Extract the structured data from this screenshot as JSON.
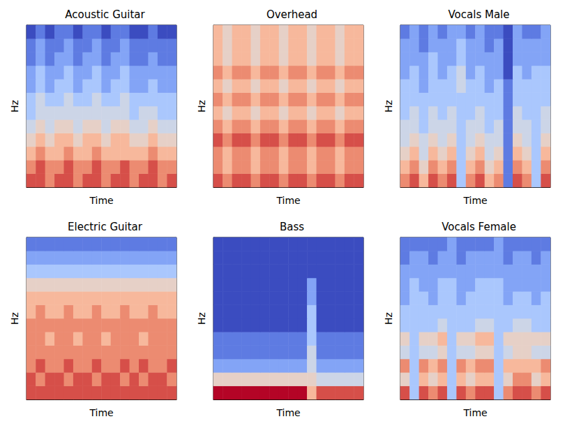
{
  "chart_data": [
    {
      "type": "heatmap",
      "title": "Acoustic Guitar",
      "x_label": "Time",
      "y_label": "Hz",
      "tick_labels": false,
      "zlim": [
        0,
        9
      ],
      "cells": [
        [
          8,
          8,
          7,
          8,
          8,
          7,
          8,
          8,
          7,
          8,
          8,
          7,
          8,
          8,
          7,
          8
        ],
        [
          7,
          8,
          7,
          7,
          8,
          7,
          7,
          8,
          7,
          7,
          8,
          7,
          7,
          8,
          7,
          7
        ],
        [
          6,
          7,
          6,
          6,
          7,
          6,
          6,
          7,
          6,
          6,
          6,
          6,
          6,
          7,
          6,
          6
        ],
        [
          5,
          6,
          5,
          6,
          6,
          5,
          6,
          6,
          5,
          6,
          6,
          5,
          5,
          6,
          5,
          5
        ],
        [
          4,
          5,
          4,
          5,
          5,
          4,
          5,
          5,
          4,
          5,
          5,
          4,
          4,
          5,
          4,
          4
        ],
        [
          3,
          4,
          4,
          4,
          4,
          4,
          4,
          4,
          4,
          4,
          4,
          3,
          4,
          4,
          3,
          3
        ],
        [
          3,
          4,
          3,
          3,
          4,
          3,
          3,
          4,
          3,
          3,
          4,
          3,
          3,
          3,
          3,
          3
        ],
        [
          2,
          3,
          2,
          3,
          3,
          2,
          3,
          3,
          2,
          3,
          3,
          2,
          2,
          3,
          2,
          2
        ],
        [
          2,
          3,
          2,
          2,
          3,
          2,
          2,
          3,
          2,
          2,
          3,
          2,
          2,
          2,
          2,
          2
        ],
        [
          1,
          2,
          1,
          2,
          2,
          1,
          2,
          2,
          1,
          2,
          2,
          1,
          1,
          2,
          1,
          1
        ],
        [
          1,
          2,
          1,
          1,
          2,
          1,
          1,
          2,
          1,
          1,
          2,
          1,
          1,
          1,
          1,
          1
        ],
        [
          0,
          1,
          0,
          1,
          1,
          0,
          1,
          1,
          0,
          1,
          1,
          0,
          0,
          1,
          0,
          0
        ]
      ]
    },
    {
      "type": "heatmap",
      "title": "Overhead",
      "x_label": "Time",
      "y_label": "Hz",
      "tick_labels": false,
      "zlim": [
        0,
        9
      ],
      "cells": [
        [
          8,
          7,
          8,
          8,
          7,
          8,
          8,
          7,
          8,
          8,
          7,
          8,
          8,
          7,
          8,
          8
        ],
        [
          7,
          6,
          7,
          7,
          6,
          7,
          7,
          6,
          7,
          7,
          6,
          7,
          7,
          6,
          7,
          7
        ],
        [
          7,
          6,
          7,
          7,
          6,
          7,
          7,
          6,
          7,
          7,
          6,
          7,
          7,
          6,
          7,
          7
        ],
        [
          8,
          7,
          8,
          8,
          7,
          8,
          8,
          7,
          8,
          8,
          7,
          8,
          8,
          7,
          8,
          8
        ],
        [
          7,
          6,
          7,
          7,
          6,
          7,
          7,
          6,
          7,
          7,
          6,
          7,
          7,
          6,
          7,
          7
        ],
        [
          6,
          5,
          6,
          6,
          5,
          6,
          6,
          5,
          6,
          6,
          5,
          6,
          6,
          5,
          6,
          6
        ],
        [
          7,
          6,
          7,
          7,
          6,
          7,
          7,
          6,
          7,
          7,
          6,
          7,
          7,
          6,
          7,
          7
        ],
        [
          6,
          5,
          6,
          6,
          5,
          6,
          6,
          5,
          6,
          6,
          5,
          6,
          6,
          5,
          6,
          6
        ],
        [
          7,
          6,
          7,
          7,
          6,
          7,
          7,
          6,
          7,
          7,
          6,
          7,
          7,
          6,
          7,
          7
        ],
        [
          6,
          5,
          6,
          6,
          5,
          6,
          6,
          5,
          6,
          6,
          5,
          6,
          6,
          5,
          6,
          6
        ],
        [
          6,
          5,
          6,
          6,
          5,
          6,
          6,
          5,
          6,
          6,
          5,
          6,
          6,
          5,
          6,
          6
        ],
        [
          6,
          5,
          6,
          6,
          5,
          6,
          6,
          5,
          6,
          6,
          5,
          6,
          6,
          5,
          6,
          6
        ]
      ]
    },
    {
      "type": "heatmap",
      "title": "Vocals Male",
      "x_label": "Time",
      "y_label": "Hz",
      "tick_labels": false,
      "zlim": [
        0,
        9
      ],
      "cells": [
        [
          7,
          8,
          6,
          8,
          7,
          8,
          3,
          7,
          8,
          6,
          7,
          1,
          8,
          7,
          3,
          8
        ],
        [
          6,
          7,
          5,
          7,
          6,
          7,
          3,
          6,
          7,
          5,
          6,
          1,
          7,
          6,
          3,
          7
        ],
        [
          5,
          6,
          4,
          6,
          5,
          6,
          3,
          5,
          6,
          4,
          5,
          1,
          6,
          5,
          3,
          6
        ],
        [
          4,
          5,
          4,
          5,
          4,
          5,
          3,
          4,
          5,
          4,
          4,
          1,
          5,
          4,
          3,
          5
        ],
        [
          4,
          4,
          3,
          4,
          4,
          4,
          3,
          4,
          4,
          3,
          4,
          1,
          4,
          4,
          3,
          4
        ],
        [
          3,
          4,
          3,
          4,
          3,
          4,
          3,
          3,
          4,
          3,
          3,
          1,
          4,
          3,
          3,
          4
        ],
        [
          3,
          3,
          3,
          3,
          3,
          3,
          3,
          3,
          3,
          3,
          3,
          1,
          3,
          3,
          3,
          3
        ],
        [
          3,
          3,
          2,
          3,
          3,
          3,
          4,
          3,
          3,
          2,
          3,
          1,
          3,
          3,
          3,
          3
        ],
        [
          2,
          3,
          2,
          3,
          2,
          3,
          4,
          2,
          3,
          2,
          2,
          0,
          3,
          2,
          3,
          3
        ],
        [
          2,
          2,
          2,
          3,
          2,
          2,
          3,
          2,
          2,
          2,
          2,
          0,
          2,
          2,
          2,
          2
        ],
        [
          2,
          2,
          1,
          2,
          2,
          2,
          3,
          2,
          2,
          1,
          2,
          0,
          2,
          2,
          2,
          2
        ],
        [
          1,
          2,
          1,
          2,
          1,
          2,
          2,
          1,
          2,
          1,
          1,
          0,
          2,
          1,
          1,
          2
        ]
      ]
    },
    {
      "type": "heatmap",
      "title": "Electric Guitar",
      "x_label": "Time",
      "y_label": "Hz",
      "tick_labels": false,
      "zlim": [
        0,
        9
      ],
      "cells": [
        [
          8,
          8,
          8,
          8,
          8,
          8,
          8,
          8,
          8,
          8,
          8,
          8,
          8,
          8,
          8,
          8
        ],
        [
          8,
          7,
          8,
          8,
          7,
          8,
          8,
          7,
          8,
          8,
          7,
          8,
          7,
          8,
          8,
          7
        ],
        [
          7,
          8,
          7,
          7,
          8,
          7,
          7,
          8,
          7,
          7,
          8,
          7,
          8,
          7,
          7,
          8
        ],
        [
          7,
          7,
          7,
          7,
          7,
          7,
          7,
          7,
          7,
          7,
          7,
          7,
          7,
          7,
          7,
          7
        ],
        [
          7,
          7,
          6,
          7,
          7,
          6,
          7,
          7,
          6,
          7,
          7,
          7,
          6,
          7,
          7,
          7
        ],
        [
          7,
          7,
          7,
          7,
          7,
          7,
          7,
          7,
          7,
          7,
          7,
          7,
          7,
          7,
          7,
          7
        ],
        [
          6,
          7,
          6,
          6,
          7,
          6,
          6,
          7,
          6,
          6,
          7,
          6,
          6,
          7,
          6,
          6
        ],
        [
          6,
          6,
          6,
          6,
          6,
          6,
          6,
          6,
          6,
          6,
          6,
          6,
          6,
          6,
          6,
          6
        ],
        [
          5,
          5,
          5,
          5,
          5,
          5,
          5,
          5,
          5,
          5,
          5,
          5,
          5,
          5,
          5,
          5
        ],
        [
          3,
          3,
          3,
          3,
          3,
          3,
          3,
          3,
          3,
          3,
          3,
          3,
          3,
          3,
          3,
          3
        ],
        [
          2,
          2,
          2,
          2,
          2,
          2,
          2,
          2,
          2,
          2,
          2,
          2,
          2,
          2,
          2,
          2
        ],
        [
          1,
          1,
          1,
          1,
          1,
          1,
          1,
          1,
          1,
          1,
          1,
          1,
          1,
          1,
          1,
          1
        ]
      ]
    },
    {
      "type": "heatmap",
      "title": "Bass",
      "x_label": "Time",
      "y_label": "Hz",
      "tick_labels": false,
      "zlim": [
        0,
        9
      ],
      "cells": [
        [
          9,
          9,
          9,
          9,
          9,
          9,
          9,
          9,
          9,
          9,
          6,
          8,
          8,
          8,
          8,
          8
        ],
        [
          5,
          5,
          5,
          5,
          5,
          5,
          5,
          5,
          5,
          5,
          5,
          4,
          4,
          4,
          4,
          4
        ],
        [
          2,
          2,
          2,
          2,
          2,
          2,
          2,
          2,
          2,
          2,
          4,
          2,
          2,
          2,
          2,
          2
        ],
        [
          1,
          1,
          1,
          1,
          1,
          1,
          1,
          1,
          1,
          1,
          4,
          1,
          1,
          1,
          1,
          1
        ],
        [
          1,
          1,
          1,
          1,
          1,
          1,
          1,
          1,
          1,
          1,
          3,
          1,
          1,
          1,
          1,
          1
        ],
        [
          0,
          0,
          0,
          0,
          0,
          0,
          0,
          0,
          0,
          0,
          3,
          0,
          0,
          0,
          0,
          0
        ],
        [
          0,
          0,
          0,
          0,
          0,
          0,
          0,
          0,
          0,
          0,
          3,
          0,
          0,
          0,
          0,
          0
        ],
        [
          0,
          0,
          0,
          0,
          0,
          0,
          0,
          0,
          0,
          0,
          2,
          0,
          0,
          0,
          0,
          0
        ],
        [
          0,
          0,
          0,
          0,
          0,
          0,
          0,
          0,
          0,
          0,
          2,
          0,
          0,
          0,
          0,
          0
        ],
        [
          0,
          0,
          0,
          0,
          0,
          0,
          0,
          0,
          0,
          0,
          0,
          0,
          0,
          0,
          0,
          0
        ],
        [
          0,
          0,
          0,
          0,
          0,
          0,
          0,
          0,
          0,
          0,
          0,
          0,
          0,
          0,
          0,
          0
        ],
        [
          0,
          0,
          0,
          0,
          0,
          0,
          0,
          0,
          0,
          0,
          0,
          0,
          0,
          0,
          0,
          0
        ]
      ]
    },
    {
      "type": "heatmap",
      "title": "Vocals Female",
      "x_label": "Time",
      "y_label": "Hz",
      "tick_labels": false,
      "zlim": [
        0,
        9
      ],
      "cells": [
        [
          8,
          3,
          8,
          7,
          8,
          3,
          8,
          7,
          8,
          8,
          3,
          7,
          8,
          8,
          7,
          8
        ],
        [
          5,
          3,
          6,
          5,
          6,
          3,
          6,
          5,
          6,
          6,
          3,
          5,
          7,
          7,
          5,
          6
        ],
        [
          7,
          3,
          7,
          6,
          7,
          3,
          7,
          6,
          7,
          7,
          3,
          6,
          6,
          6,
          6,
          7
        ],
        [
          4,
          3,
          4,
          4,
          5,
          3,
          4,
          4,
          5,
          5,
          3,
          4,
          5,
          5,
          4,
          4
        ],
        [
          5,
          3,
          5,
          5,
          6,
          3,
          5,
          5,
          6,
          6,
          3,
          5,
          5,
          5,
          5,
          5
        ],
        [
          3,
          3,
          3,
          3,
          4,
          3,
          3,
          3,
          4,
          4,
          3,
          3,
          4,
          4,
          3,
          3
        ],
        [
          3,
          3,
          3,
          3,
          3,
          3,
          3,
          3,
          3,
          3,
          3,
          3,
          3,
          3,
          3,
          3
        ],
        [
          2,
          3,
          3,
          2,
          3,
          3,
          2,
          3,
          3,
          3,
          3,
          2,
          3,
          3,
          2,
          3
        ],
        [
          2,
          3,
          2,
          2,
          3,
          3,
          2,
          2,
          3,
          3,
          3,
          2,
          2,
          2,
          2,
          2
        ],
        [
          2,
          2,
          2,
          2,
          2,
          2,
          2,
          2,
          2,
          2,
          2,
          2,
          2,
          2,
          2,
          2
        ],
        [
          1,
          2,
          2,
          1,
          2,
          2,
          1,
          2,
          2,
          2,
          2,
          1,
          2,
          2,
          1,
          2
        ],
        [
          1,
          1,
          1,
          1,
          1,
          2,
          1,
          1,
          1,
          1,
          2,
          1,
          1,
          1,
          1,
          1
        ]
      ]
    }
  ]
}
